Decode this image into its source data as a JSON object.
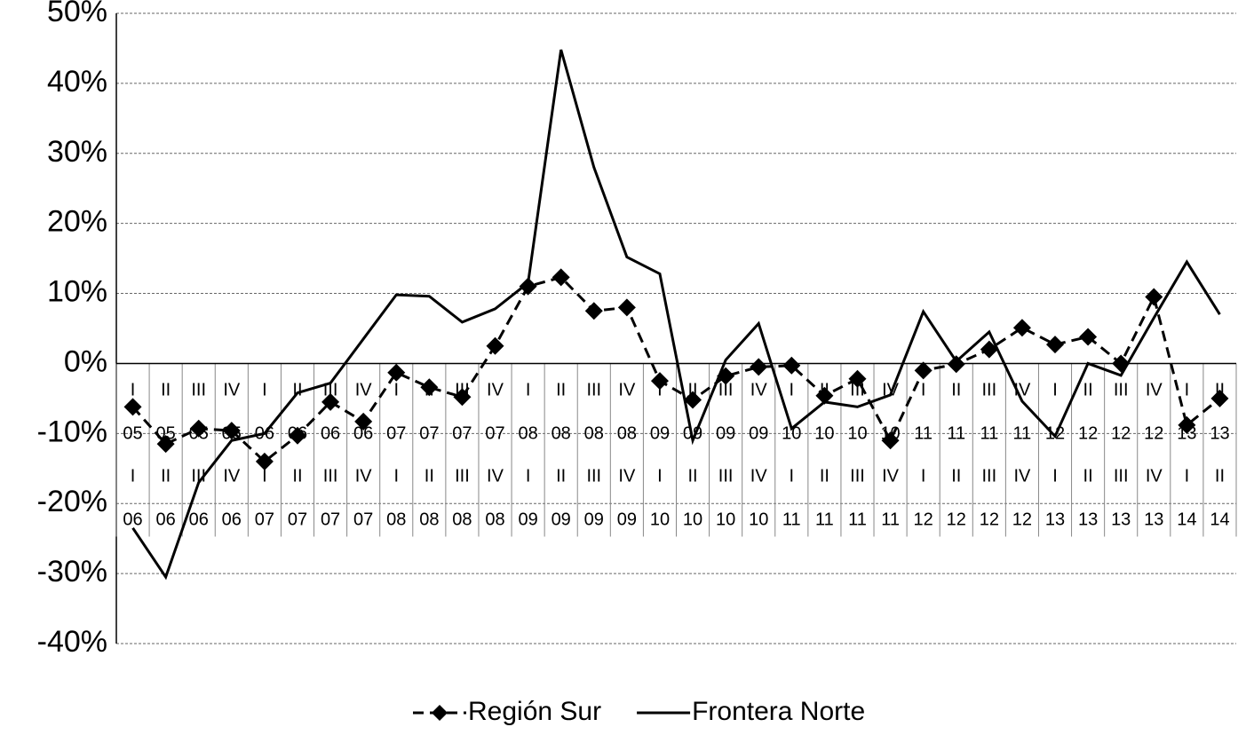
{
  "chart_data": {
    "type": "line",
    "categories": [
      [
        "I",
        "05",
        "I",
        "06"
      ],
      [
        "II",
        "05",
        "II",
        "06"
      ],
      [
        "III",
        "05",
        "III",
        "06"
      ],
      [
        "IV",
        "05",
        "IV",
        "06"
      ],
      [
        "I",
        "06",
        "I",
        "07"
      ],
      [
        "II",
        "06",
        "II",
        "07"
      ],
      [
        "III",
        "06",
        "III",
        "07"
      ],
      [
        "IV",
        "06",
        "IV",
        "07"
      ],
      [
        "I",
        "07",
        "I",
        "08"
      ],
      [
        "II",
        "07",
        "II",
        "08"
      ],
      [
        "III",
        "07",
        "III",
        "08"
      ],
      [
        "IV",
        "07",
        "IV",
        "08"
      ],
      [
        "I",
        "08",
        "I",
        "09"
      ],
      [
        "II",
        "08",
        "II",
        "09"
      ],
      [
        "III",
        "08",
        "III",
        "09"
      ],
      [
        "IV",
        "08",
        "IV",
        "09"
      ],
      [
        "I",
        "09",
        "I",
        "10"
      ],
      [
        "II",
        "09",
        "II",
        "10"
      ],
      [
        "III",
        "09",
        "III",
        "10"
      ],
      [
        "IV",
        "09",
        "IV",
        "10"
      ],
      [
        "I",
        "10",
        "I",
        "11"
      ],
      [
        "II",
        "10",
        "II",
        "11"
      ],
      [
        "III",
        "10",
        "III",
        "11"
      ],
      [
        "IV",
        "10",
        "IV",
        "11"
      ],
      [
        "I",
        "11",
        "I",
        "12"
      ],
      [
        "II",
        "11",
        "II",
        "12"
      ],
      [
        "III",
        "11",
        "III",
        "12"
      ],
      [
        "IV",
        "11",
        "IV",
        "12"
      ],
      [
        "I",
        "12",
        "I",
        "13"
      ],
      [
        "II",
        "12",
        "II",
        "13"
      ],
      [
        "III",
        "12",
        "III",
        "13"
      ],
      [
        "IV",
        "12",
        "IV",
        "13"
      ],
      [
        "I",
        "13",
        "I",
        "14"
      ],
      [
        "II",
        "13",
        "II",
        "14"
      ]
    ],
    "series": [
      {
        "name": "Región Sur",
        "color": "#000000",
        "dashed": true,
        "marker": "diamond",
        "values": [
          -6.2,
          -11.5,
          -9.3,
          -9.6,
          -14,
          -10.3,
          -5.5,
          -8.3,
          -1.3,
          -3.4,
          -4.8,
          2.5,
          11,
          12.3,
          7.5,
          8,
          -2.5,
          -5.2,
          -1.8,
          -0.5,
          -0.3,
          -4.6,
          -2.2,
          -11,
          -1,
          -0.1,
          2,
          5.1,
          2.7,
          3.8,
          0,
          9.5,
          -8.8,
          -5
        ]
      },
      {
        "name": "Frontera Norte",
        "color": "#000000",
        "dashed": false,
        "marker": "none",
        "values": [
          -23.5,
          -30.5,
          -17,
          -11,
          -10,
          -4.2,
          -2.8,
          3.5,
          9.8,
          9.6,
          5.9,
          7.8,
          11.5,
          44.8,
          28,
          15.2,
          12.8,
          -11,
          0.5,
          5.7,
          -9.3,
          -5.5,
          -6.2,
          -4.5,
          7.4,
          0.3,
          4.5,
          -5.4,
          -10.4,
          0,
          -1.7,
          6.5,
          14.5,
          7
        ]
      }
    ],
    "ylim": [
      -40,
      50
    ],
    "yticks": [
      {
        "value": -40,
        "label": "-40%"
      },
      {
        "value": -30,
        "label": "-30%"
      },
      {
        "value": -20,
        "label": "-20%"
      },
      {
        "value": -10,
        "label": "-10%"
      },
      {
        "value": 0,
        "label": "0%"
      },
      {
        "value": 10,
        "label": "10%"
      },
      {
        "value": 20,
        "label": "20%"
      },
      {
        "value": 30,
        "label": "30%"
      },
      {
        "value": 40,
        "label": "40%"
      },
      {
        "value": 50,
        "label": "50%"
      }
    ],
    "grid": true,
    "legend": "bottom"
  }
}
